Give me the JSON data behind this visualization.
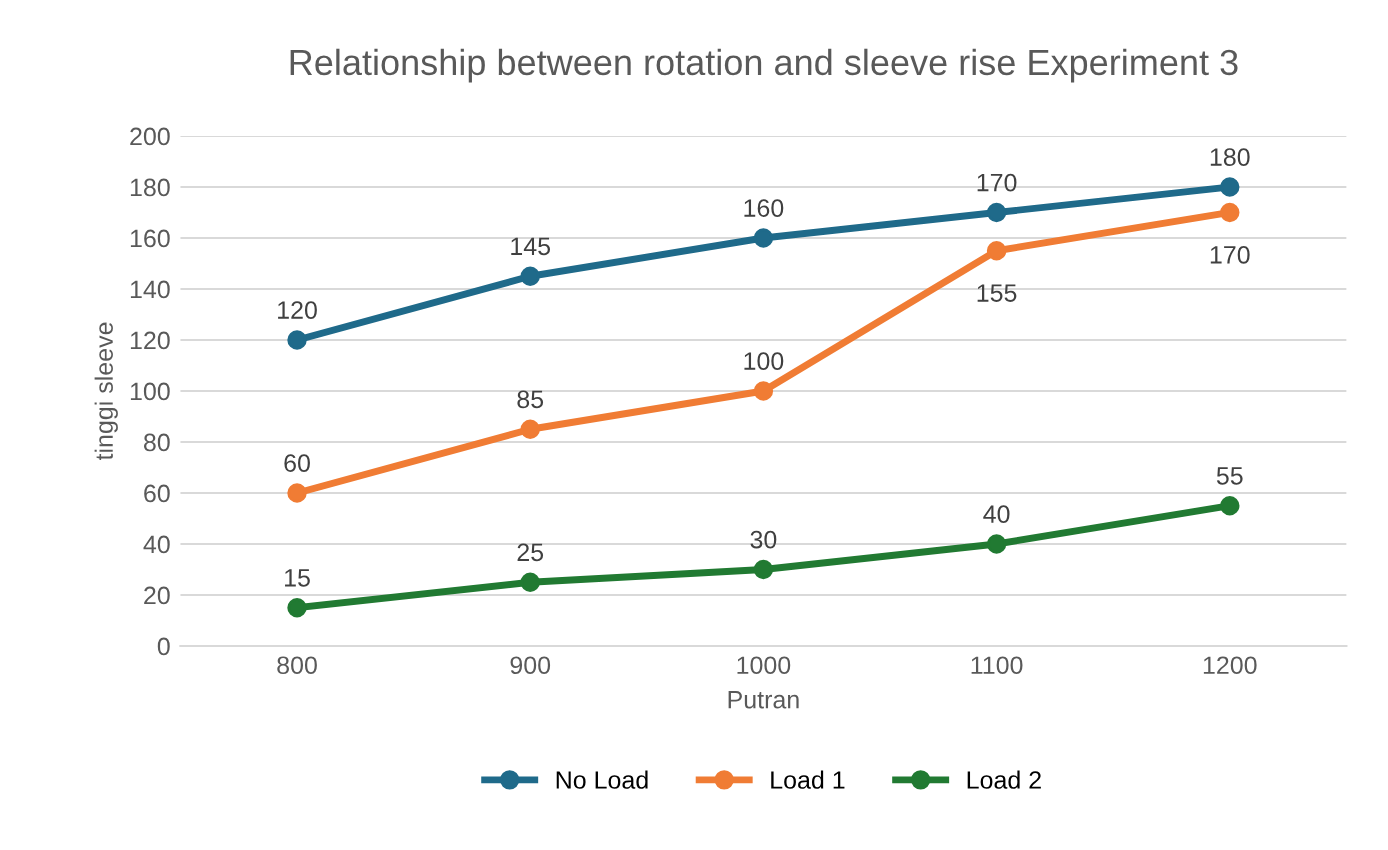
{
  "chart_data": {
    "type": "line",
    "title": "Relationship between rotation and sleeve rise Experiment 3",
    "xlabel": "Putran",
    "ylabel": "tinggi sleeve",
    "categories": [
      "800",
      "900",
      "1000",
      "1100",
      "1200"
    ],
    "series": [
      {
        "name": "No Load",
        "color": "#1f6a8a",
        "values": [
          120,
          145,
          160,
          170,
          180
        ]
      },
      {
        "name": "Load 1",
        "color": "#f07c34",
        "values": [
          60,
          85,
          100,
          155,
          170
        ]
      },
      {
        "name": "Load 2",
        "color": "#217a32",
        "values": [
          15,
          25,
          30,
          40,
          55
        ]
      }
    ],
    "ylim": [
      0,
      200
    ],
    "yticks": [
      0,
      20,
      40,
      60,
      80,
      100,
      120,
      140,
      160,
      180,
      200
    ],
    "grid": "y",
    "legend": "bottom",
    "marker": "circle",
    "line_style": "solid",
    "data_labels": true
  }
}
